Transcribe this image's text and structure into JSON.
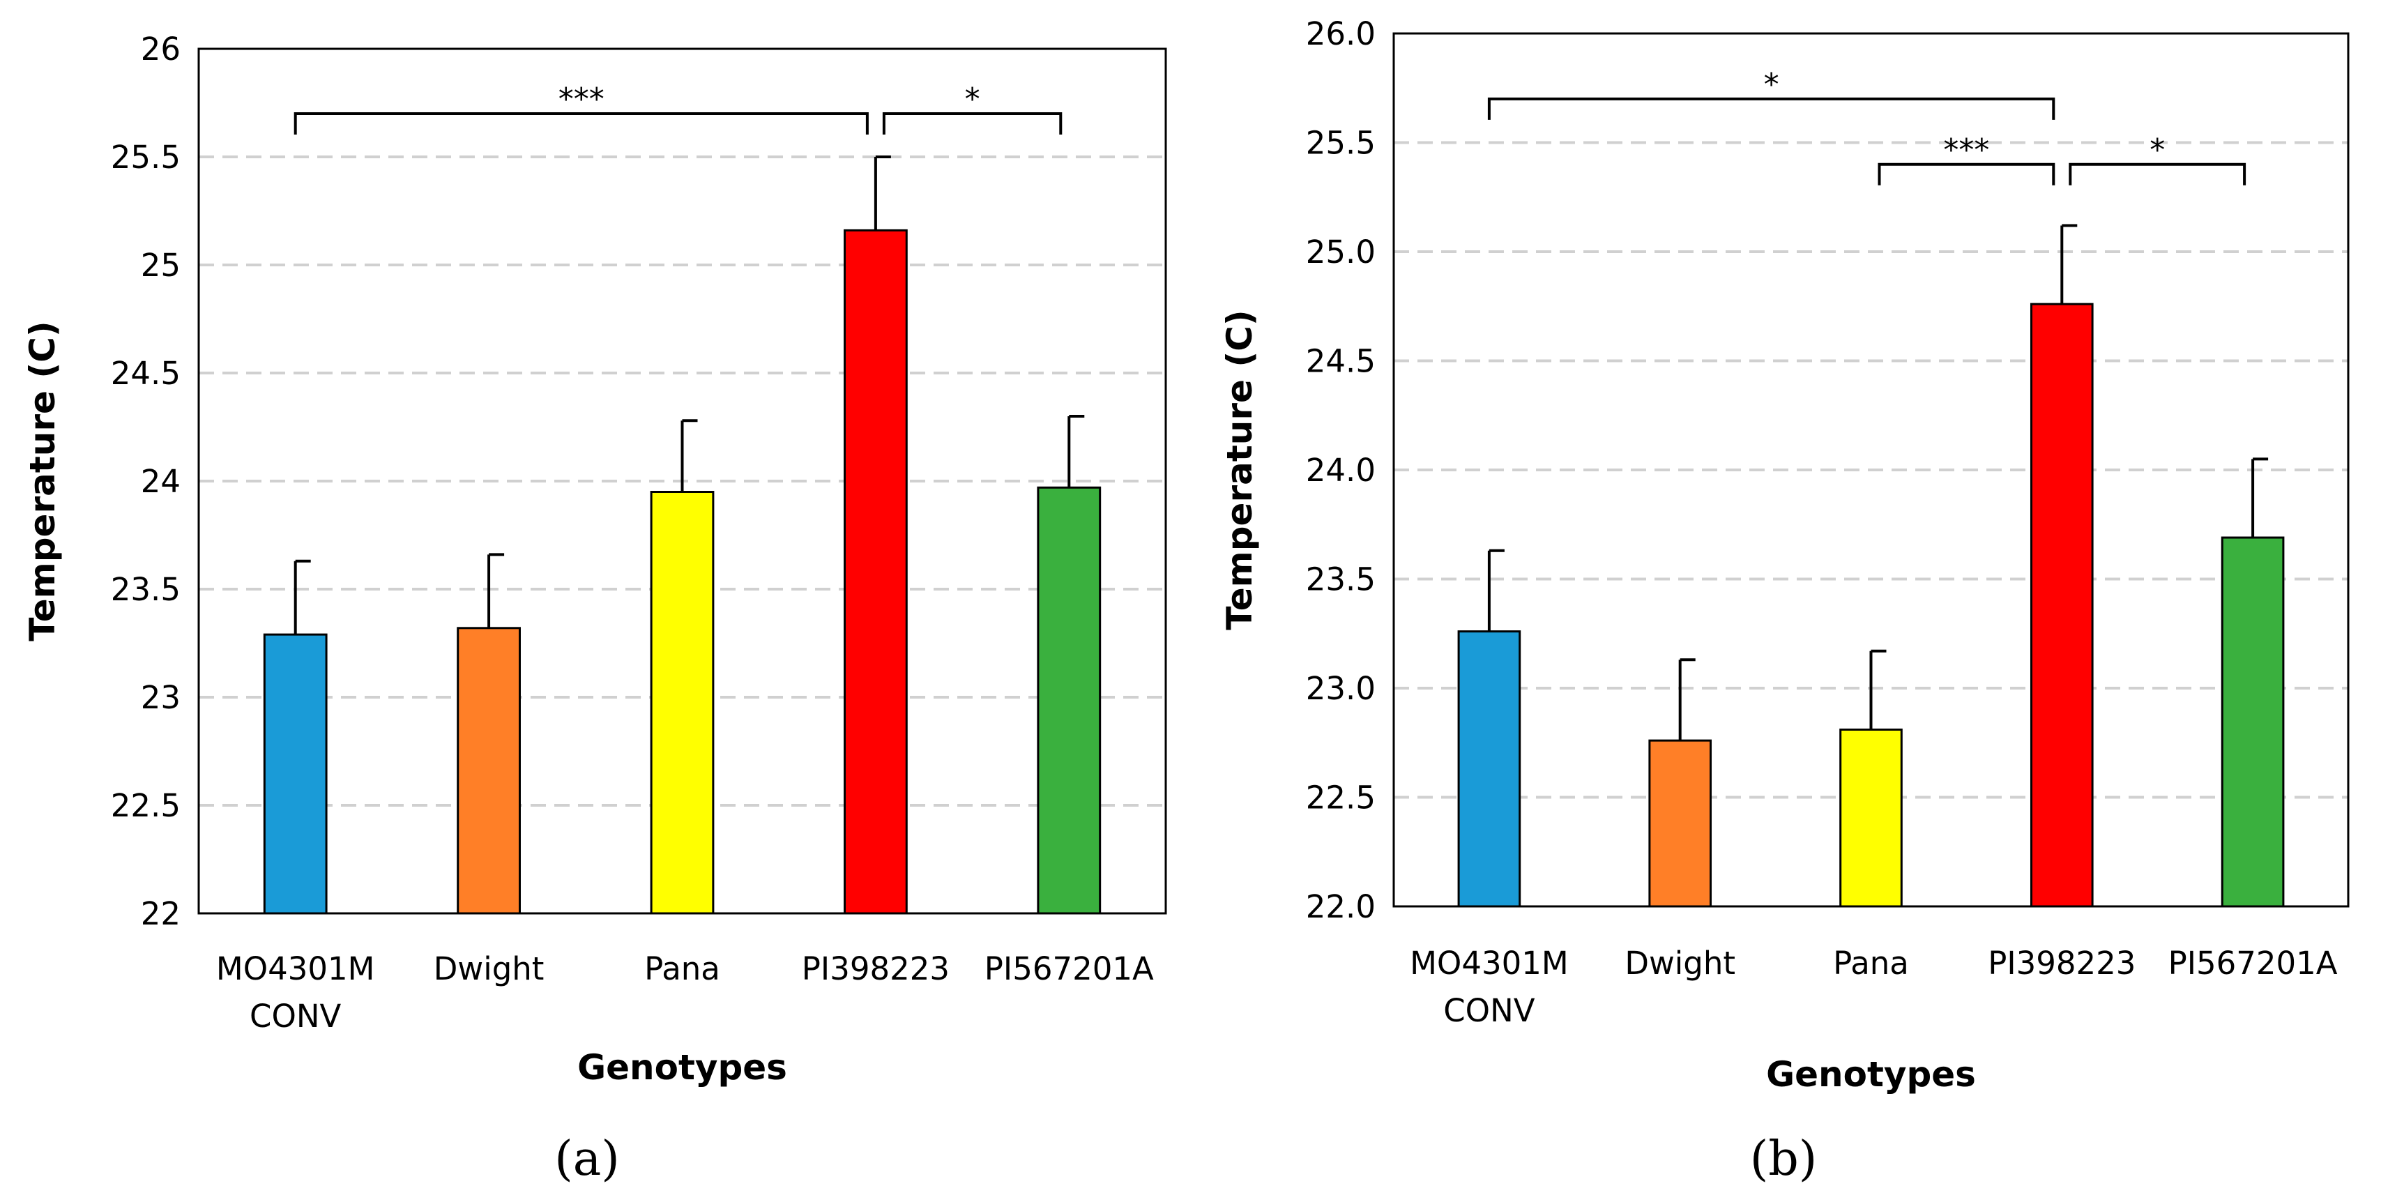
{
  "chart_data": [
    {
      "type": "bar",
      "panel_label": "(a)",
      "categories": [
        [
          "MO4301M",
          "CONV"
        ],
        [
          "Dwight"
        ],
        [
          "Pana"
        ],
        [
          "PI398223"
        ],
        [
          "PI567201A"
        ]
      ],
      "values": [
        23.29,
        23.32,
        23.95,
        25.16,
        23.97
      ],
      "errors": [
        0.34,
        0.34,
        0.33,
        0.34,
        0.33
      ],
      "colors": [
        "#1a9bd7",
        "#ff7f27",
        "#ffff00",
        "#ff0000",
        "#3ab03e"
      ],
      "ylim": [
        22,
        26
      ],
      "yticks": [
        "22",
        "22.5",
        "23",
        "23.5",
        "24",
        "24.5",
        "25",
        "25.5",
        "26"
      ],
      "xlabel": "Genotypes",
      "ylabel": "Temperature (C)",
      "grid": true,
      "significance": [
        {
          "from": 0,
          "to": 3,
          "label": "***",
          "level": 25.7
        },
        {
          "from": 3,
          "to": 4,
          "label": "*",
          "level": 25.7
        }
      ]
    },
    {
      "type": "bar",
      "panel_label": "(b)",
      "categories": [
        [
          "MO4301M",
          "CONV"
        ],
        [
          "Dwight"
        ],
        [
          "Pana"
        ],
        [
          "PI398223"
        ],
        [
          "PI567201A"
        ]
      ],
      "values": [
        23.26,
        22.76,
        22.81,
        24.76,
        23.69
      ],
      "errors": [
        0.37,
        0.37,
        0.36,
        0.36,
        0.36
      ],
      "colors": [
        "#1a9bd7",
        "#ff7f27",
        "#ffff00",
        "#ff0000",
        "#3ab03e"
      ],
      "ylim": [
        22.0,
        26.0
      ],
      "yticks": [
        "22.0",
        "22.5",
        "23.0",
        "23.5",
        "24.0",
        "24.5",
        "25.0",
        "25.5",
        "26.0"
      ],
      "xlabel": "Genotypes",
      "ylabel": "Temperature (C)",
      "grid": true,
      "significance": [
        {
          "from": 0,
          "to": 3,
          "label": "*",
          "level": 25.7
        },
        {
          "from": 2,
          "to": 3,
          "label": "***",
          "level": 25.4
        },
        {
          "from": 3,
          "to": 4,
          "label": "*",
          "level": 25.4
        }
      ]
    }
  ]
}
